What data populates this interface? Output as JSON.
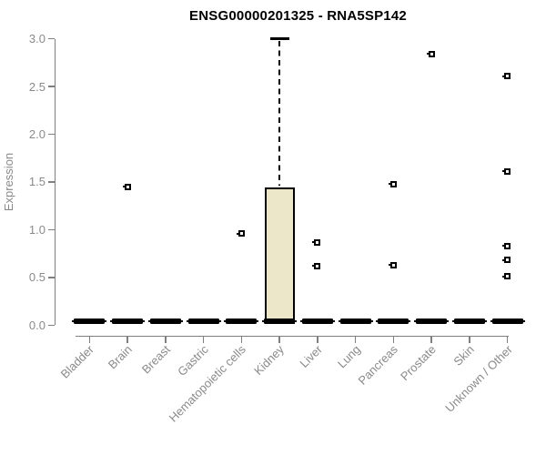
{
  "chart_data": {
    "type": "boxplot",
    "title": "ENSG00000201325 - RNA5SP142",
    "xlabel": "",
    "ylabel": "Expression",
    "ylim": [
      0.0,
      3.0
    ],
    "yticks": [
      "0.0",
      "0.5",
      "1.0",
      "1.5",
      "2.0",
      "2.5",
      "3.0"
    ],
    "grid": "off",
    "legend": "none",
    "categories": [
      "Bladder",
      "Brain",
      "Breast",
      "Gastric",
      "Hematopoietic cells",
      "Kidney",
      "Liver",
      "Lung",
      "Pancreas",
      "Prostate",
      "Skin",
      "Unknown / Other"
    ],
    "boxes": [
      {
        "category": "Bladder",
        "median": 0,
        "q1": 0,
        "q3": 0,
        "whisker_low": 0,
        "whisker_high": 0,
        "outliers": []
      },
      {
        "category": "Brain",
        "median": 0,
        "q1": 0,
        "q3": 0,
        "whisker_low": 0,
        "whisker_high": 0,
        "outliers": [
          1.45
        ]
      },
      {
        "category": "Breast",
        "median": 0,
        "q1": 0,
        "q3": 0,
        "whisker_low": 0,
        "whisker_high": 0,
        "outliers": []
      },
      {
        "category": "Gastric",
        "median": 0,
        "q1": 0,
        "q3": 0,
        "whisker_low": 0,
        "whisker_high": 0,
        "outliers": []
      },
      {
        "category": "Hematopoietic cells",
        "median": 0,
        "q1": 0,
        "q3": 0,
        "whisker_low": 0,
        "whisker_high": 0,
        "outliers": [
          0.96
        ]
      },
      {
        "category": "Kidney",
        "median": 0,
        "q1": 0,
        "q3": 1.44,
        "whisker_low": 0,
        "whisker_high": 3.0,
        "outliers": []
      },
      {
        "category": "Liver",
        "median": 0,
        "q1": 0,
        "q3": 0,
        "whisker_low": 0,
        "whisker_high": 0,
        "outliers": [
          0.87,
          0.62
        ]
      },
      {
        "category": "Lung",
        "median": 0,
        "q1": 0,
        "q3": 0,
        "whisker_low": 0,
        "whisker_high": 0,
        "outliers": []
      },
      {
        "category": "Pancreas",
        "median": 0,
        "q1": 0,
        "q3": 0,
        "whisker_low": 0,
        "whisker_high": 0,
        "outliers": [
          1.48,
          0.63
        ]
      },
      {
        "category": "Prostate",
        "median": 0,
        "q1": 0,
        "q3": 0,
        "whisker_low": 0,
        "whisker_high": 0,
        "outliers": [
          2.84
        ]
      },
      {
        "category": "Skin",
        "median": 0,
        "q1": 0,
        "q3": 0,
        "whisker_low": 0,
        "whisker_high": 0,
        "outliers": []
      },
      {
        "category": "Unknown / Other",
        "median": 0,
        "q1": 0,
        "q3": 0,
        "whisker_low": 0,
        "whisker_high": 0,
        "outliers": [
          2.61,
          1.61,
          0.83,
          0.68,
          0.51
        ]
      }
    ],
    "colors": {
      "box_fill": "#ede7c9",
      "box_stroke": "#000000",
      "axis": "#808080",
      "tick_label": "#8a8a8a",
      "title": "#000000",
      "background": "#ffffff"
    }
  }
}
